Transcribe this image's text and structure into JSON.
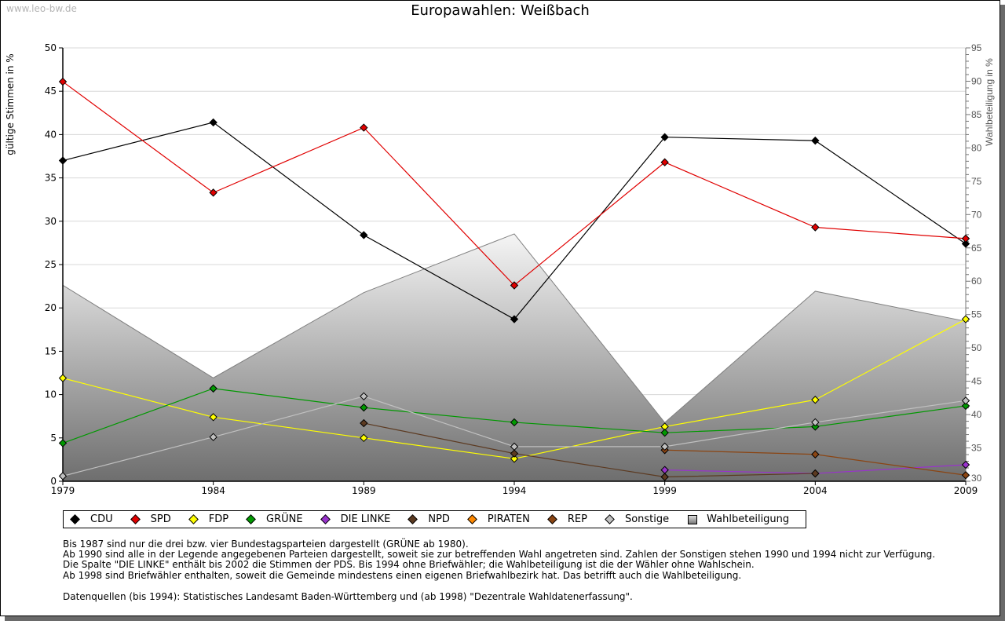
{
  "watermark": "www.leo-bw.de",
  "chart_data": {
    "type": "line",
    "title": "Europawahlen: Weißbach",
    "ylabel": "gültige Stimmen in %",
    "y2label": "Wahlbeteiligung in %",
    "xlabel": "",
    "ylim": [
      0,
      50
    ],
    "y2lim": [
      30,
      95
    ],
    "yticks": [
      0,
      5,
      10,
      15,
      20,
      25,
      30,
      35,
      40,
      45,
      50
    ],
    "y2ticks": [
      30,
      35,
      40,
      45,
      50,
      55,
      60,
      65,
      70,
      75,
      80,
      85,
      90,
      95
    ],
    "x": [
      1979,
      1984,
      1989,
      1994,
      1999,
      2004,
      2009
    ],
    "grid": true,
    "legend_position": "bottom",
    "series": [
      {
        "name": "CDU",
        "color": "#000000",
        "values": [
          37.0,
          41.4,
          28.4,
          18.7,
          39.7,
          39.3,
          27.4
        ]
      },
      {
        "name": "SPD",
        "color": "#e00000",
        "values": [
          46.1,
          33.3,
          40.8,
          22.6,
          36.8,
          29.3,
          28.0
        ]
      },
      {
        "name": "FDP",
        "color": "#ffff00",
        "values": [
          11.9,
          7.4,
          5.0,
          2.6,
          6.3,
          9.4,
          18.7
        ]
      },
      {
        "name": "GRÜNE",
        "color": "#009900",
        "values": [
          4.4,
          10.7,
          8.5,
          6.8,
          5.6,
          6.3,
          8.7
        ]
      },
      {
        "name": "DIE LINKE",
        "color": "#9933cc",
        "values": [
          null,
          null,
          null,
          null,
          1.3,
          0.9,
          1.9
        ]
      },
      {
        "name": "NPD",
        "color": "#5c3a21",
        "values": [
          null,
          null,
          6.7,
          3.2,
          0.5,
          0.9,
          null
        ]
      },
      {
        "name": "PIRATEN",
        "color": "#ff8800",
        "values": [
          null,
          null,
          null,
          null,
          null,
          null,
          null
        ]
      },
      {
        "name": "REP",
        "color": "#8b4513",
        "values": [
          null,
          null,
          null,
          null,
          3.6,
          3.1,
          0.7
        ]
      },
      {
        "name": "Sonstige",
        "color": "#c0c0c0",
        "values": [
          0.6,
          5.1,
          9.8,
          4.0,
          4.0,
          6.8,
          9.3
        ]
      }
    ],
    "area_series": {
      "name": "Wahlbeteiligung",
      "axis": "right",
      "values": [
        59.4,
        45.5,
        58.3,
        67.1,
        38.8,
        58.5,
        54.0
      ]
    }
  },
  "legend": [
    {
      "label": "CDU",
      "color": "#000000",
      "shape": "diamond"
    },
    {
      "label": "SPD",
      "color": "#e00000",
      "shape": "diamond"
    },
    {
      "label": "FDP",
      "color": "#ffff00",
      "shape": "diamond"
    },
    {
      "label": "GRÜNE",
      "color": "#009900",
      "shape": "diamond"
    },
    {
      "label": "DIE LINKE",
      "color": "#9933cc",
      "shape": "diamond"
    },
    {
      "label": "NPD",
      "color": "#5c3a21",
      "shape": "diamond"
    },
    {
      "label": "PIRATEN",
      "color": "#ff8800",
      "shape": "diamond"
    },
    {
      "label": "REP",
      "color": "#8b4513",
      "shape": "diamond"
    },
    {
      "label": "Sonstige",
      "color": "#c0c0c0",
      "shape": "diamond"
    },
    {
      "label": "Wahlbeteiligung",
      "color": "#999999",
      "shape": "square"
    }
  ],
  "notes": [
    "Bis 1987 sind nur die drei bzw. vier Bundestagsparteien dargestellt (GRÜNE ab 1980).",
    "Ab 1990 sind alle in der Legende angegebenen Parteien dargestellt, soweit sie zur betreffenden Wahl angetreten sind. Zahlen der Sonstigen stehen 1990 und 1994 nicht zur Verfügung.",
    "Die Spalte \"DIE LINKE\" enthält bis 2002 die Stimmen der PDS. Bis 1994 ohne Briefwähler; die Wahlbeteiligung ist die der Wähler ohne Wahlschein.",
    "Ab 1998 sind Briefwähler enthalten, soweit die Gemeinde mindestens einen eigenen Briefwahlbezirk hat. Das betrifft auch die Wahlbeteiligung."
  ],
  "source": "Datenquellen (bis 1994): Statistisches Landesamt Baden-Württemberg und (ab 1998) \"Dezentrale Wahldatenerfassung\"."
}
